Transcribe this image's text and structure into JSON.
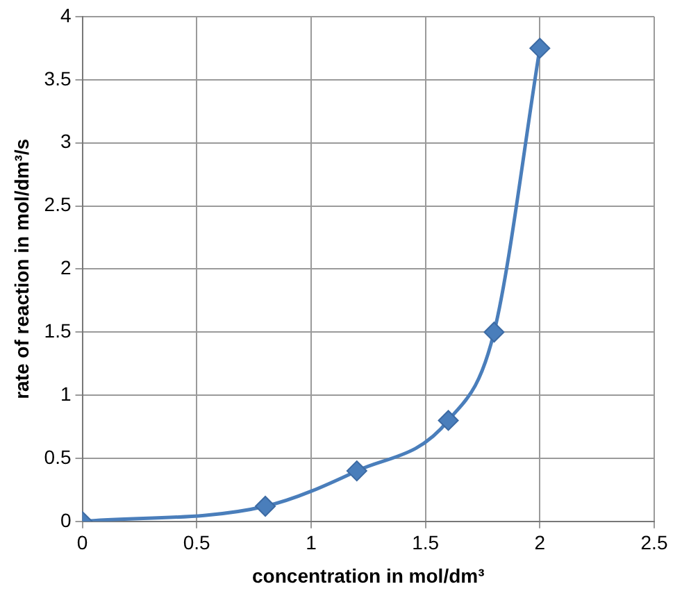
{
  "chart_data": {
    "type": "line",
    "xlabel": "concentration in mol/dm³",
    "ylabel": "rate of reaction in mol/dm³/s",
    "x": [
      0,
      0.8,
      1.2,
      1.6,
      1.8,
      2.0
    ],
    "series": [
      {
        "color": "#4a7ebb",
        "values": [
          0,
          0.12,
          0.4,
          0.8,
          1.5,
          3.75
        ]
      }
    ],
    "xlim": [
      0,
      2.5
    ],
    "xticks": [
      0,
      0.5,
      1,
      1.5,
      2,
      2.5
    ],
    "ylim": [
      0,
      4
    ],
    "yticks": [
      0,
      0.5,
      1,
      1.5,
      2,
      2.5,
      3,
      3.5,
      4
    ],
    "grid": true,
    "marker": "diamond",
    "line_style": "solid",
    "legend": false
  }
}
